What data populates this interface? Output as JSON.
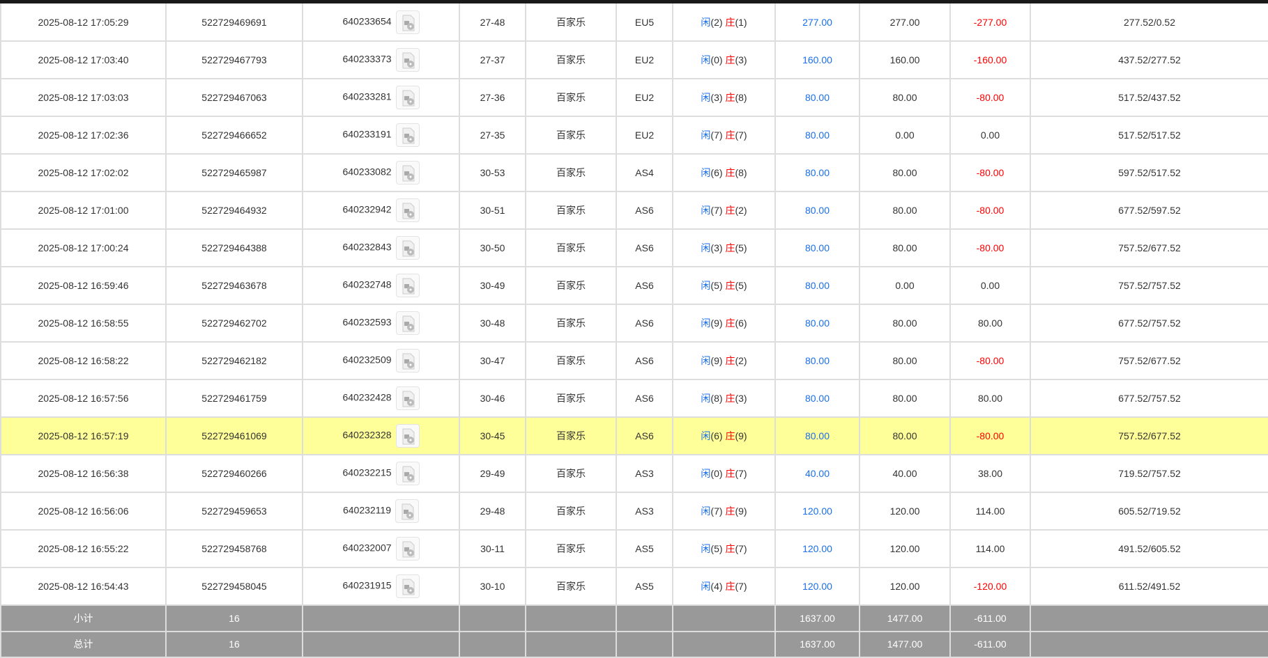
{
  "rows": [
    [
      "2025-08-12 17:05:29",
      "522729469691",
      "640233654",
      "27-48",
      "百家乐",
      "EU5",
      "2",
      "1",
      "277.00",
      "277.00",
      "-277.00",
      "277.52/0.52"
    ],
    [
      "2025-08-12 17:03:40",
      "522729467793",
      "640233373",
      "27-37",
      "百家乐",
      "EU2",
      "0",
      "3",
      "160.00",
      "160.00",
      "-160.00",
      "437.52/277.52"
    ],
    [
      "2025-08-12 17:03:03",
      "522729467063",
      "640233281",
      "27-36",
      "百家乐",
      "EU2",
      "3",
      "8",
      "80.00",
      "80.00",
      "-80.00",
      "517.52/437.52"
    ],
    [
      "2025-08-12 17:02:36",
      "522729466652",
      "640233191",
      "27-35",
      "百家乐",
      "EU2",
      "7",
      "7",
      "80.00",
      "0.00",
      "0.00",
      "517.52/517.52"
    ],
    [
      "2025-08-12 17:02:02",
      "522729465987",
      "640233082",
      "30-53",
      "百家乐",
      "AS4",
      "6",
      "8",
      "80.00",
      "80.00",
      "-80.00",
      "597.52/517.52"
    ],
    [
      "2025-08-12 17:01:00",
      "522729464932",
      "640232942",
      "30-51",
      "百家乐",
      "AS6",
      "7",
      "2",
      "80.00",
      "80.00",
      "-80.00",
      "677.52/597.52"
    ],
    [
      "2025-08-12 17:00:24",
      "522729464388",
      "640232843",
      "30-50",
      "百家乐",
      "AS6",
      "3",
      "5",
      "80.00",
      "80.00",
      "-80.00",
      "757.52/677.52"
    ],
    [
      "2025-08-12 16:59:46",
      "522729463678",
      "640232748",
      "30-49",
      "百家乐",
      "AS6",
      "5",
      "5",
      "80.00",
      "0.00",
      "0.00",
      "757.52/757.52"
    ],
    [
      "2025-08-12 16:58:55",
      "522729462702",
      "640232593",
      "30-48",
      "百家乐",
      "AS6",
      "9",
      "6",
      "80.00",
      "80.00",
      "80.00",
      "677.52/757.52"
    ],
    [
      "2025-08-12 16:58:22",
      "522729462182",
      "640232509",
      "30-47",
      "百家乐",
      "AS6",
      "9",
      "2",
      "80.00",
      "80.00",
      "-80.00",
      "757.52/677.52"
    ],
    [
      "2025-08-12 16:57:56",
      "522729461759",
      "640232428",
      "30-46",
      "百家乐",
      "AS6",
      "8",
      "3",
      "80.00",
      "80.00",
      "80.00",
      "677.52/757.52"
    ],
    [
      "2025-08-12 16:57:19",
      "522729461069",
      "640232328",
      "30-45",
      "百家乐",
      "AS6",
      "6",
      "9",
      "80.00",
      "80.00",
      "-80.00",
      "757.52/677.52"
    ],
    [
      "2025-08-12 16:56:38",
      "522729460266",
      "640232215",
      "29-49",
      "百家乐",
      "AS3",
      "0",
      "7",
      "40.00",
      "40.00",
      "38.00",
      "719.52/757.52"
    ],
    [
      "2025-08-12 16:56:06",
      "522729459653",
      "640232119",
      "29-48",
      "百家乐",
      "AS3",
      "7",
      "9",
      "120.00",
      "120.00",
      "114.00",
      "605.52/719.52"
    ],
    [
      "2025-08-12 16:55:22",
      "522729458768",
      "640232007",
      "30-11",
      "百家乐",
      "AS5",
      "5",
      "7",
      "120.00",
      "120.00",
      "114.00",
      "491.52/605.52"
    ],
    [
      "2025-08-12 16:54:43",
      "522729458045",
      "640231915",
      "30-10",
      "百家乐",
      "AS5",
      "4",
      "7",
      "120.00",
      "120.00",
      "-120.00",
      "611.52/491.52"
    ]
  ],
  "highlighted_row": 11,
  "player_label": "闲",
  "banker_label": "庄",
  "summary": [
    {
      "label": "小计",
      "count": "16",
      "bet": "1637.00",
      "valid": "1477.00",
      "result": "-611.00"
    },
    {
      "label": "总计",
      "count": "16",
      "bet": "1637.00",
      "valid": "1477.00",
      "result": "-611.00"
    }
  ],
  "colors": {
    "blue": "#1a6fe8",
    "red": "#ff0000",
    "highlight": "#ffff99",
    "summary_bg": "#999999"
  }
}
